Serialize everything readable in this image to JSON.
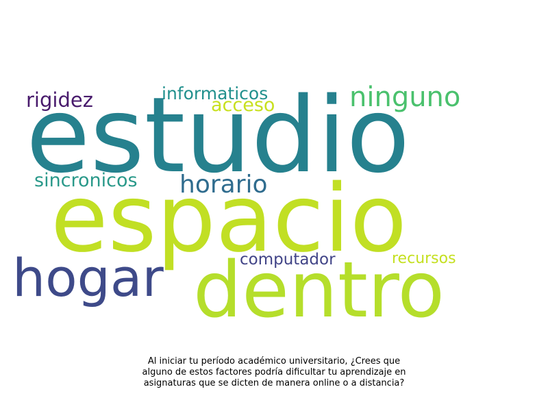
{
  "wordcloud": {
    "words": [
      {
        "key": "estudio",
        "text": "estudio",
        "color": "#26818e"
      },
      {
        "key": "espacio",
        "text": "espacio",
        "color": "#c1df24"
      },
      {
        "key": "dentro",
        "text": "dentro",
        "color": "#b5de2b"
      },
      {
        "key": "hogar",
        "text": "hogar",
        "color": "#3e4a89"
      },
      {
        "key": "ninguno",
        "text": "ninguno",
        "color": "#4ac16d"
      },
      {
        "key": "horario",
        "text": "horario",
        "color": "#2f6c8e"
      },
      {
        "key": "sincronicos",
        "text": "sincronicos",
        "color": "#2a998a"
      },
      {
        "key": "rigidez",
        "text": "rigidez",
        "color": "#481a6c"
      },
      {
        "key": "informaticos",
        "text": "informaticos",
        "color": "#21908d"
      },
      {
        "key": "acceso",
        "text": "acceso",
        "color": "#c8e020"
      },
      {
        "key": "computador",
        "text": "computador",
        "color": "#414487"
      },
      {
        "key": "recursos",
        "text": "recursos",
        "color": "#c5e021"
      }
    ]
  },
  "caption": {
    "line1": "Al iniciar tu período académico universitario, ¿Crees que",
    "line2": "alguno de estos factores podría dificultar tu aprendizaje en",
    "line3": "asignaturas que se dicten de manera online o a distancia?"
  }
}
